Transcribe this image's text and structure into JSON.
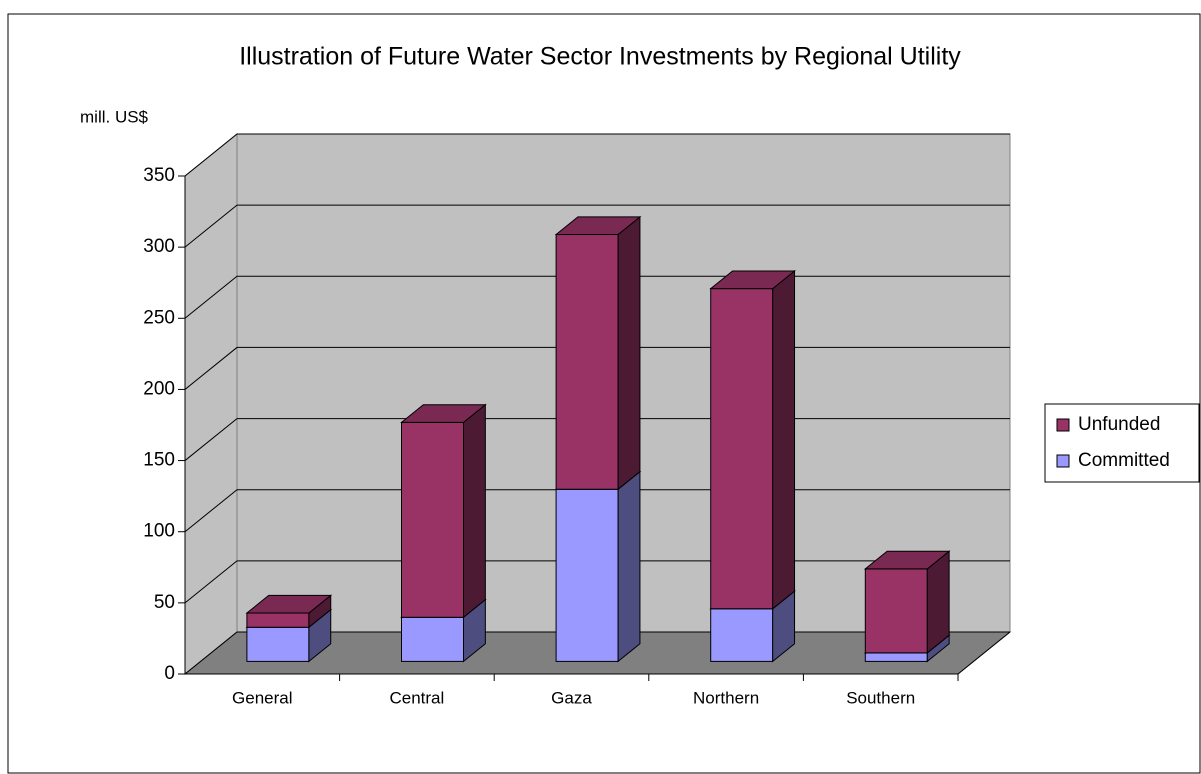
{
  "chart_data": {
    "type": "bar3d_stacked",
    "title": "Illustration of  Future Water Sector Investments  by Regional Utility",
    "y_label": "mill. US$",
    "categories": [
      "General",
      "Central",
      "Gaza",
      "Northern",
      "Southern"
    ],
    "series": [
      {
        "name": "Committed",
        "color": "#9999ff",
        "values": [
          24,
          31,
          121,
          37,
          6
        ]
      },
      {
        "name": "Unfunded",
        "color": "#993366",
        "values": [
          10,
          137,
          179,
          225,
          59
        ]
      }
    ],
    "ylim": [
      0,
      350
    ],
    "yticks": [
      0,
      50,
      100,
      150,
      200,
      250,
      300,
      350
    ],
    "grid": true
  }
}
